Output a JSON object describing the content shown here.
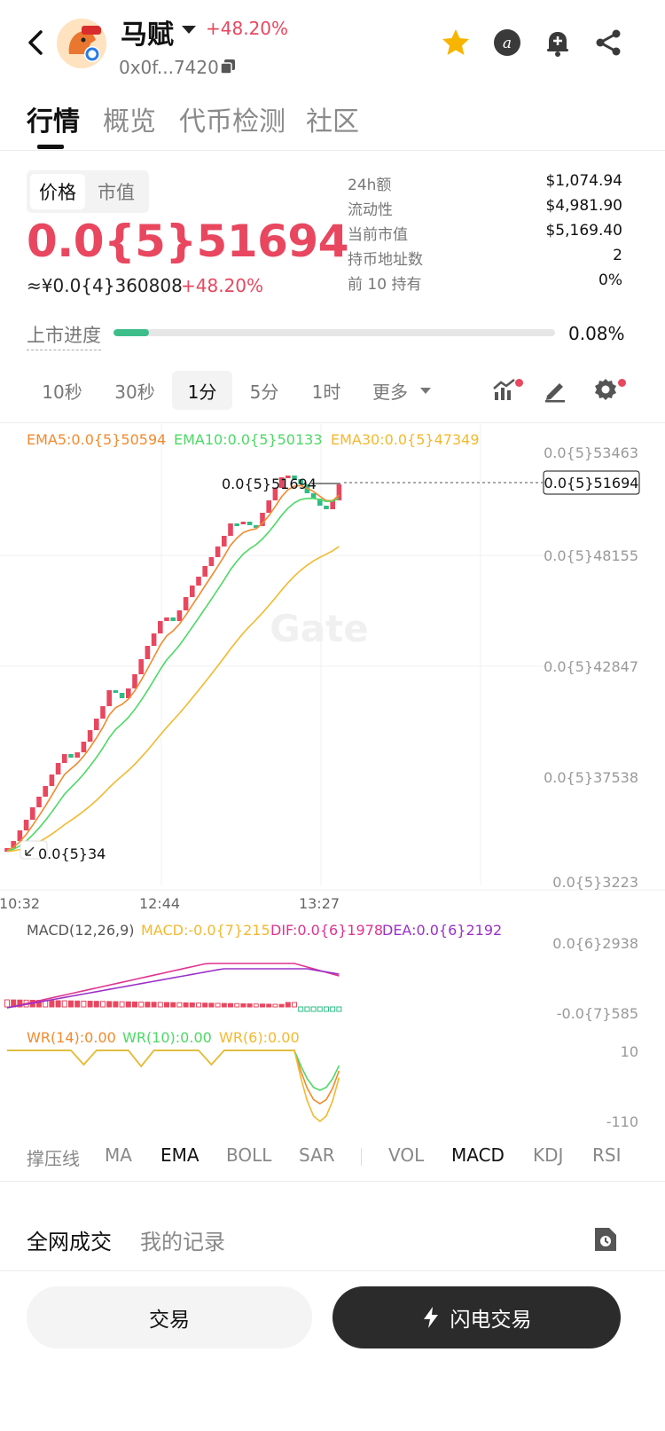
{
  "header": {
    "coin_name": "马赋",
    "change": "+48.20%",
    "address": "0x0f...7420"
  },
  "main_tabs": [
    "行情",
    "概览",
    "代币检测",
    "社区"
  ],
  "price_section": {
    "seg_price": "价格",
    "seg_mcap": "市值",
    "price": "0.0{5}51694",
    "cny_price": "≈¥0.0{4}360808",
    "change": "+48.20%",
    "stats": [
      {
        "label": "24h额",
        "value": "$1,074.94"
      },
      {
        "label": "流动性",
        "value": "$4,981.90"
      },
      {
        "label": "当前市值",
        "value": "$5,169.40"
      },
      {
        "label": "持币地址数",
        "value": "2"
      },
      {
        "label": "前 10 持有",
        "value": "0%"
      }
    ],
    "progress_label": "上市进度",
    "progress_value": "0.08%",
    "progress_fraction": 0.08
  },
  "intervals": [
    "10秒",
    "30秒",
    "1分",
    "5分",
    "1时",
    "更多"
  ],
  "chart": {
    "ema5": "EMA5:0.0{5}50594",
    "ema10": "EMA10:0.0{5}50133",
    "ema30": "EMA30:0.0{5}47349",
    "high_label": "0.0{5}51694",
    "low_label": "0.0{5}34",
    "current_tag": "0.0{5}51694",
    "y_axis": [
      "0.0{5}53463",
      "0.0{5}48155",
      "0.0{5}42847",
      "0.0{5}37538",
      "0.0{5}3223"
    ],
    "x_axis": [
      "10:32",
      "12:44",
      "13:27"
    ],
    "watermark": "Gate",
    "macd_title": "MACD(12,26,9)",
    "macd_val": "MACD:-0.0{7}215",
    "dif_val": "DIF:0.0{6}1978",
    "dea_val": "DEA:0.0{6}2192",
    "macd_top": "0.0{6}2938",
    "macd_bottom": "-0.0{7}585",
    "wr14": "WR(14):0.00",
    "wr10": "WR(10):0.00",
    "wr6": "WR(6):0.00",
    "wr_top": "10",
    "wr_bottom": "-110",
    "colors": {
      "up": "#e8475f",
      "down": "#2ebd85",
      "ema5": "#f28a2e",
      "ema10": "#4cd964",
      "ema30": "#f5b82e",
      "dif": "#e0338f",
      "dea": "#9b30c8"
    }
  },
  "indicators": [
    "撑压线",
    "MA",
    "EMA",
    "BOLL",
    "SAR",
    "VOL",
    "MACD",
    "KDJ",
    "RSI"
  ],
  "trades": {
    "tab_all": "全网成交",
    "tab_mine": "我的记录"
  },
  "buttons": {
    "trade": "交易",
    "flash": "闪电交易"
  }
}
